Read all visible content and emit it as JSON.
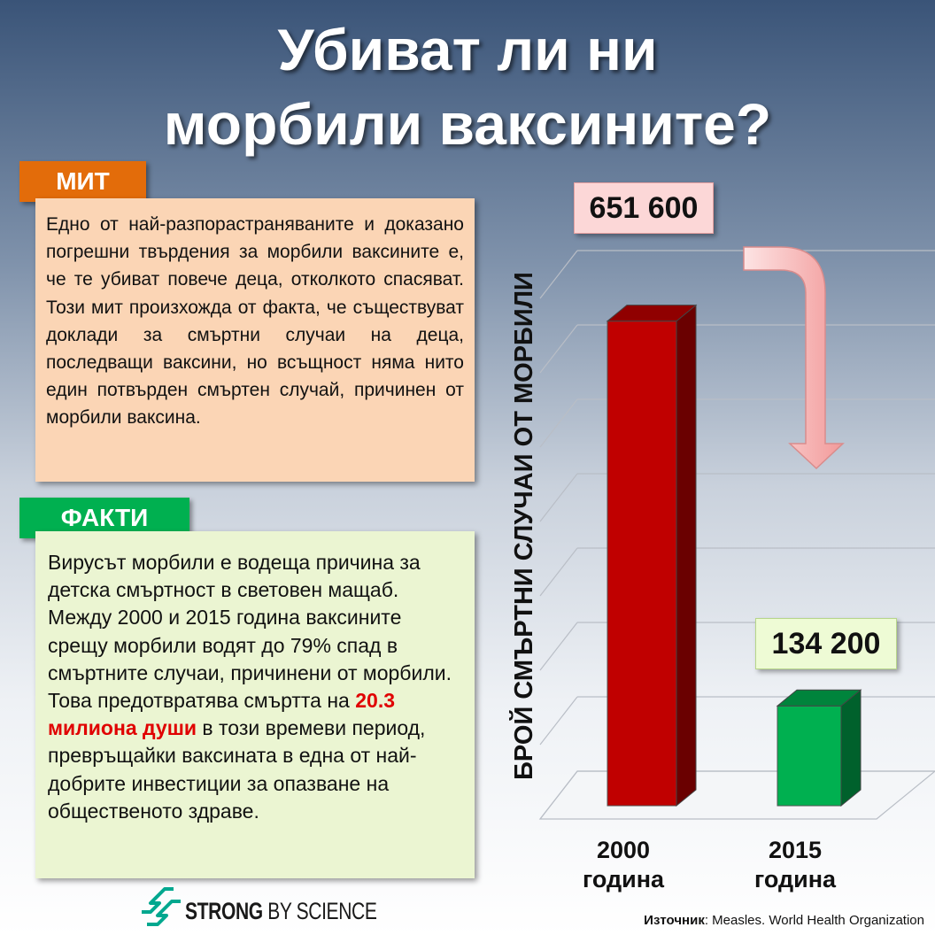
{
  "title": {
    "line1": "Убиват ли ни",
    "line2": "морбили ваксините?"
  },
  "myth": {
    "label": "МИТ",
    "text": "Едно от най-разпорастраняваните и доказано погрешни твърдения за морбили ваксините е, че те убиват повече деца, отколкото спасяват. Този мит произхожда от факта, че съществуват доклади за смъртни случаи на деца, последващи ваксини, но всъщност няма нито един потвърден смъртен случай, причинен от морбили ваксина."
  },
  "facts": {
    "label": "ФАКТИ",
    "text_before": "Вирусът морбили е водеща причина за детска смъртност в световен мащаб. Между 2000 и 2015 година ваксините срещу морбили водят до 79% спад в смъртните случаи, причинени от морбили. Това предотвратява смъртта на ",
    "highlight": "20.3 милиона души",
    "text_after": " в този времеви период, превръщайки ваксината в една от най-добрите инвестиции за опазване на общественото здраве."
  },
  "chart_data": {
    "type": "bar",
    "categories": [
      "2000 година",
      "2015 година"
    ],
    "category_lines": [
      [
        "2000",
        "година"
      ],
      [
        "2015",
        "година"
      ]
    ],
    "values": [
      651600,
      134200
    ],
    "value_labels": [
      "651 600",
      "134 200"
    ],
    "ylabel": "БРОЙ СМЪРТНИ СЛУЧАИ ОТ МОРБИЛИ",
    "ylim": [
      0,
      700000
    ],
    "grid": true,
    "bar_colors": [
      "#c00000",
      "#00b050"
    ]
  },
  "logo": {
    "strong": "STRONG",
    "rest": " BY SCIENCE"
  },
  "source": {
    "label": "Източник",
    "text": ": Measles. World Health Organization"
  }
}
